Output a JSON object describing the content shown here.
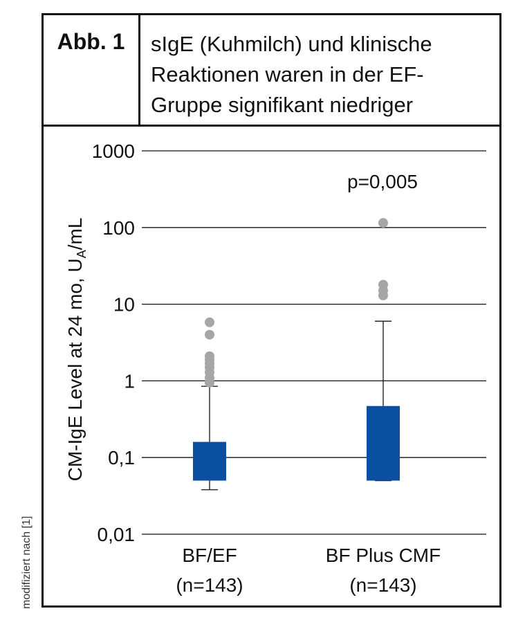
{
  "figure": {
    "label": "Abb. 1",
    "title_lines": [
      "sIgE (Kuhmilch) und klinische",
      "Reaktionen waren in der EF-",
      "Gruppe signifikant niedriger"
    ],
    "credit": "modifiziert nach [1]"
  },
  "chart_data": {
    "type": "box",
    "yscale": "log",
    "ylim": [
      0.01,
      1000
    ],
    "grid": true,
    "ylabel": "CM-IgE Level at 24 mo, U",
    "ylabel_subscript": "A",
    "ylabel_suffix": "/mL",
    "yticks": [
      {
        "value": 1000,
        "label": "1000"
      },
      {
        "value": 100,
        "label": "100"
      },
      {
        "value": 10,
        "label": "10"
      },
      {
        "value": 1,
        "label": "1"
      },
      {
        "value": 0.1,
        "label": "0,1"
      },
      {
        "value": 0.01,
        "label": "0,01"
      }
    ],
    "categories": [
      {
        "name": "BF/EF",
        "n": "(n=143)"
      },
      {
        "name": "BF Plus CMF",
        "n": "(n=143)"
      }
    ],
    "boxes": [
      {
        "q1": 0.05,
        "q3": 0.16,
        "whisker_low": 0.038,
        "whisker_high": 0.85,
        "outliers": [
          0.95,
          1.1,
          1.3,
          1.5,
          1.7,
          1.9,
          2.1,
          4.0,
          5.8
        ]
      },
      {
        "q1": 0.05,
        "q3": 0.47,
        "whisker_low": 0.05,
        "whisker_high": 6.0,
        "outliers": [
          13,
          15,
          18,
          115
        ]
      }
    ],
    "box_color": "#0a4fa0",
    "outlier_color": "#a6a6a6",
    "annotation": "p=0,005"
  }
}
